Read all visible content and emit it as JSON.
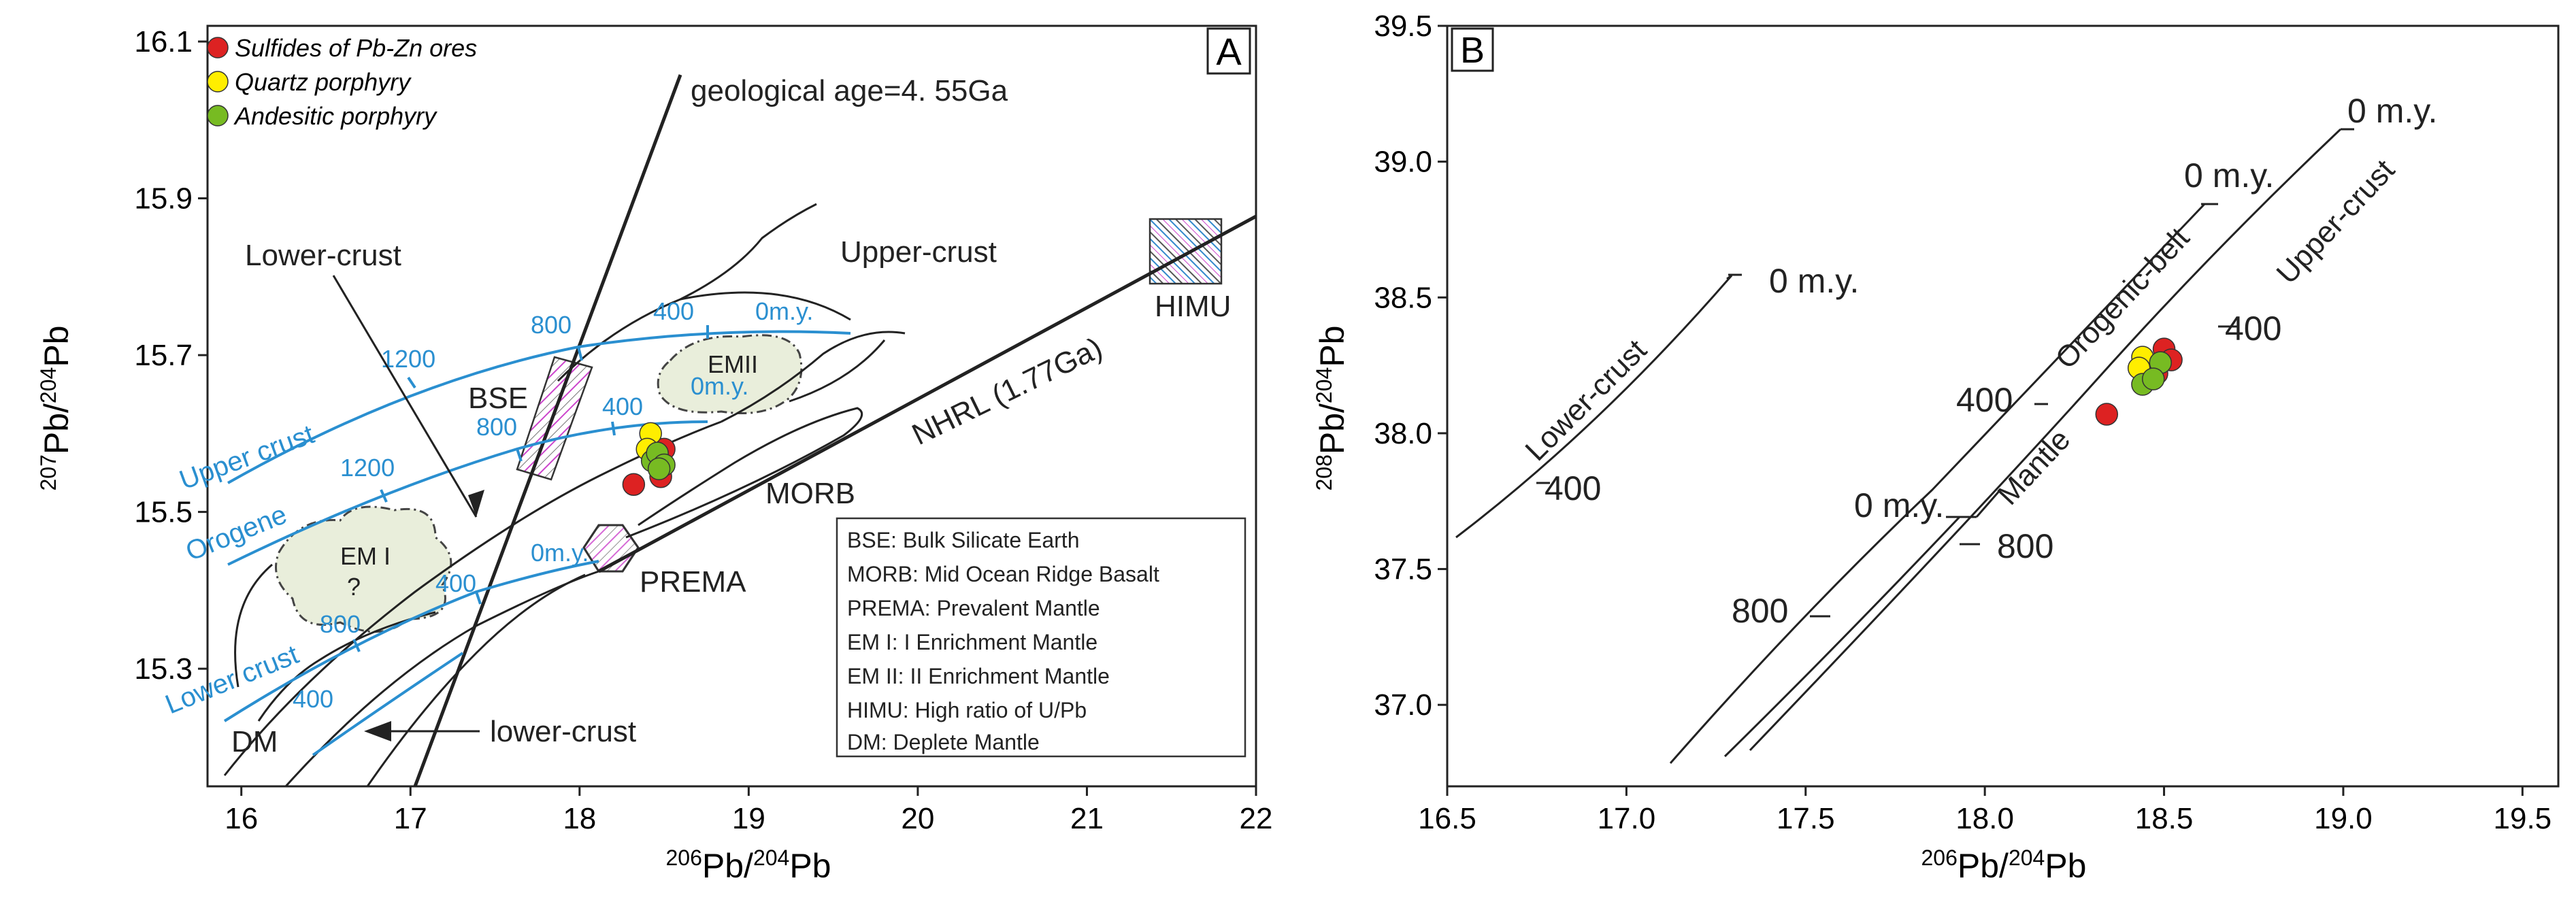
{
  "colors": {
    "sulfide": "#dd2222",
    "quartz": "#ffee00",
    "andesitic": "#77bb22",
    "evolution_curves": "#2a8fd0",
    "reservoir_fill": "#e9eedb",
    "line": "#222222"
  },
  "chart_data": [
    {
      "type": "scatter",
      "panel_label": "A",
      "xlabel": "206Pb/204Pb",
      "ylabel": "207Pb/204Pb",
      "xlim": [
        15.8,
        22
      ],
      "ylim": [
        15.15,
        16.12
      ],
      "x_ticks": [
        "16",
        "17",
        "18",
        "19",
        "20",
        "21",
        "22"
      ],
      "y_ticks": [
        "15.3",
        "15.5",
        "15.7",
        "15.9",
        "16.1"
      ],
      "legend": [
        {
          "label": "Sulfides of Pb-Zn ores",
          "color": "#dd2222"
        },
        {
          "label": "Quartz porphyry",
          "color": "#ffee00"
        },
        {
          "label": "Andesitic porphyry",
          "color": "#77bb22"
        }
      ],
      "series": [
        {
          "name": "Sulfides of Pb-Zn ores",
          "color": "#dd2222",
          "points": [
            [
              18.32,
              15.535
            ],
            [
              18.48,
              15.545
            ],
            [
              18.5,
              15.58
            ],
            [
              18.44,
              15.575
            ]
          ]
        },
        {
          "name": "Quartz porphyry",
          "color": "#ffee00",
          "points": [
            [
              18.42,
              15.6
            ],
            [
              18.4,
              15.58
            ]
          ]
        },
        {
          "name": "Andesitic porphyry",
          "color": "#77bb22",
          "points": [
            [
              18.43,
              15.565
            ],
            [
              18.46,
              15.575
            ],
            [
              18.5,
              15.56
            ],
            [
              18.47,
              15.555
            ]
          ]
        }
      ],
      "reservoirs": [
        {
          "label": "EM I",
          "note": "?",
          "center": [
            16.85,
            15.45
          ]
        },
        {
          "label": "EMII",
          "center": [
            18.9,
            15.66
          ]
        },
        {
          "label": "BSE",
          "center": [
            17.9,
            15.63
          ]
        },
        {
          "label": "HIMU",
          "center": [
            21.5,
            15.84
          ]
        },
        {
          "label": "PREMA",
          "center": [
            18.3,
            15.46
          ]
        },
        {
          "label": "MORB",
          "center": [
            19.6,
            15.5
          ]
        },
        {
          "label": "DM",
          "center": [
            16.2,
            15.2
          ]
        }
      ],
      "evolution_curves": [
        {
          "name": "Upper crust",
          "ticks": [
            "1200",
            "800",
            "400",
            "0m.y."
          ]
        },
        {
          "name": "Orogene",
          "ticks": [
            "1200",
            "800",
            "400",
            "0m.y."
          ]
        },
        {
          "name": "Lower crust",
          "ticks": [
            "800",
            "400",
            "0m.y.",
            "400"
          ]
        }
      ],
      "annotations": {
        "geochron": "geological age=4. 55Ga",
        "nhrl": "NHRL (1.77Ga)",
        "upper_crust": "Upper-crust",
        "lower_crust_top": "Lower-crust",
        "lower_crust_bottom": "lower-crust",
        "morb": "MORB",
        "prema": "PREMA",
        "himu": "HIMU",
        "bse": "BSE",
        "dm": "DM",
        "em1": "EM I",
        "em1_q": "?",
        "em2": "EMII",
        "uc_curve": "Upper  crust",
        "orogene": "Orogene",
        "lc_curve": "Lower crust",
        "uc_1200": "1200",
        "uc_800": "800",
        "uc_400": "400",
        "uc_0": "0m.y.",
        "or_1200": "1200",
        "or_800": "800",
        "or_400": "400",
        "or_0": "0m.y.",
        "lc_800": "800",
        "lc_400": "400",
        "lc_0": "0m.y.",
        "lc_400b": "400"
      },
      "abbreviations": [
        "BSE: Bulk Silicate Earth",
        "MORB: Mid Ocean Ridge Basalt",
        "PREMA: Prevalent Mantle",
        "EM I: I Enrichment Mantle",
        "EM II: II Enrichment Mantle",
        "HIMU: High ratio of U/Pb",
        "DM: Deplete Mantle"
      ]
    },
    {
      "type": "scatter",
      "panel_label": "B",
      "xlabel": "206Pb/204Pb",
      "ylabel": "208Pb/204Pb",
      "xlim": [
        16.5,
        19.6
      ],
      "ylim": [
        36.7,
        39.5
      ],
      "x_ticks": [
        "16.5",
        "17.0",
        "17.5",
        "18.0",
        "18.5",
        "19.0",
        "19.5"
      ],
      "y_ticks": [
        "37.0",
        "37.5",
        "38.0",
        "38.5",
        "39.0",
        "39.5"
      ],
      "series": [
        {
          "name": "Sulfides of Pb-Zn ores",
          "color": "#dd2222",
          "points": [
            [
              18.34,
              38.07
            ],
            [
              18.5,
              38.31
            ],
            [
              18.52,
              38.27
            ],
            [
              18.48,
              38.22
            ]
          ]
        },
        {
          "name": "Quartz porphyry",
          "color": "#ffee00",
          "points": [
            [
              18.44,
              38.28
            ],
            [
              18.43,
              38.24
            ]
          ]
        },
        {
          "name": "Andesitic porphyry",
          "color": "#77bb22",
          "points": [
            [
              18.44,
              38.18
            ],
            [
              18.49,
              38.26
            ],
            [
              18.47,
              38.2
            ]
          ]
        }
      ],
      "curves": [
        {
          "name": "Lower-crust",
          "ticks": [
            "0 m.y.",
            "400"
          ]
        },
        {
          "name": "Orogenic-belt",
          "ticks": [
            "0 m.y.",
            "400",
            "800"
          ]
        },
        {
          "name": "Mantle",
          "ticks": [
            "0 m.y.",
            "800"
          ]
        },
        {
          "name": "Upper-crust",
          "ticks": [
            "0 m.y.",
            "400"
          ]
        }
      ],
      "annotations": {
        "lc_name": "Lower-crust",
        "lc_0": "0 m.y.",
        "lc_400": "400",
        "ob_name": "Orogenic-belt",
        "ob_0": "0 m.y.",
        "ob_400": "400",
        "ob_800": "800",
        "ma_name": "Mantle",
        "ma_0": "0 m.y.",
        "ma_800": "800",
        "uc_name": "Upper-crust",
        "uc_0": "0 m.y.",
        "uc_400": "400"
      }
    }
  ]
}
